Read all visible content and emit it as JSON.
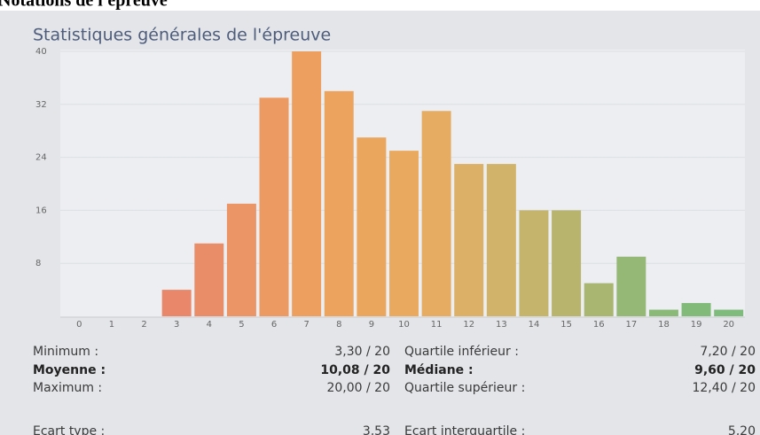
{
  "header": {
    "title": "Notations de l'épreuve"
  },
  "chart_data": {
    "type": "bar",
    "title": "Statistiques générales de l'épreuve",
    "categories": [
      "0",
      "1",
      "2",
      "3",
      "4",
      "5",
      "6",
      "7",
      "8",
      "9",
      "10",
      "11",
      "12",
      "13",
      "14",
      "15",
      "16",
      "17",
      "18",
      "19",
      "20"
    ],
    "values": [
      0,
      0,
      0,
      4,
      11,
      17,
      33,
      40,
      34,
      27,
      25,
      31,
      23,
      23,
      16,
      16,
      5,
      9,
      1,
      2,
      1
    ],
    "colors": [
      "#e5806c",
      "#e6836b",
      "#e7856a",
      "#e8876a",
      "#e98d68",
      "#eb9466",
      "#ec9a62",
      "#ed9f5f",
      "#eca35e",
      "#eba65e",
      "#e9aa60",
      "#e6ad62",
      "#dcb066",
      "#d2b36a",
      "#c4b46c",
      "#b8b46e",
      "#a8b672",
      "#96b876",
      "#8ab978",
      "#82ba7a",
      "#7ebb7c"
    ],
    "ylim": [
      0,
      40
    ],
    "yticks": [
      8,
      16,
      24,
      32,
      40
    ],
    "grid": true
  },
  "stats": {
    "rows": [
      {
        "bold": false,
        "cells": [
          "Minimum :",
          "3,30 / 20",
          "Quartile inférieur :",
          "7,20 / 20"
        ]
      },
      {
        "bold": true,
        "cells": [
          "Moyenne :",
          "10,08 / 20",
          "Médiane :",
          "9,60 / 20"
        ]
      },
      {
        "bold": false,
        "cells": [
          "Maximum :",
          "20,00 / 20",
          "Quartile supérieur :",
          "12,40 / 20"
        ]
      },
      {
        "bold": false,
        "cells": [
          "Ecart type :",
          "3,53",
          "Ecart interquartile :",
          "5,20"
        ]
      }
    ]
  }
}
